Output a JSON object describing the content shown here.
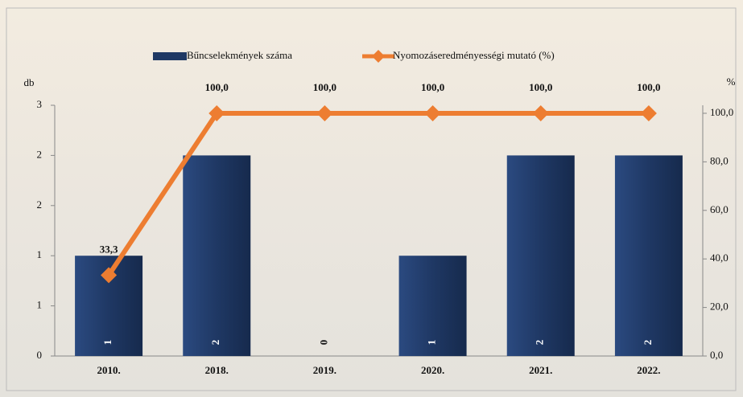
{
  "chart_data": {
    "type": "bar-line",
    "y_label": "db",
    "y2_label": "%",
    "categories": [
      "2010.",
      "2018.",
      "2019.",
      "2020.",
      "2021.",
      "2022."
    ],
    "series": [
      {
        "name": "Bűncselekmények száma",
        "type": "bar",
        "color": "#1f3864",
        "values": [
          1,
          2,
          0,
          1,
          2,
          2
        ]
      },
      {
        "name": "Nyomozáseredményességi mutató (%)",
        "type": "line",
        "axis": "y2",
        "color": "#ed7d31",
        "values": [
          33.3,
          100,
          100,
          100,
          100,
          100
        ],
        "value_labels": [
          "33,3",
          "100,0",
          "100,0",
          "100,0",
          "100,0",
          "100,0"
        ]
      }
    ],
    "ylim": [
      0,
      2.5
    ],
    "yticks": [
      0,
      {
        "value": 0.5,
        "label": "1"
      },
      1,
      {
        "value": 1.5,
        "label": "2"
      },
      2,
      {
        "value": 2.5,
        "label": "3"
      }
    ],
    "y2lim": [
      0,
      103.3
    ],
    "y2ticks": [
      {
        "value": 0,
        "label": "0,0"
      },
      {
        "value": 20,
        "label": "20,0"
      },
      {
        "value": 40,
        "label": "40,0"
      },
      {
        "value": 60,
        "label": "60,0"
      },
      {
        "value": 80,
        "label": "80,0"
      },
      {
        "value": 100,
        "label": "100,0"
      }
    ]
  }
}
